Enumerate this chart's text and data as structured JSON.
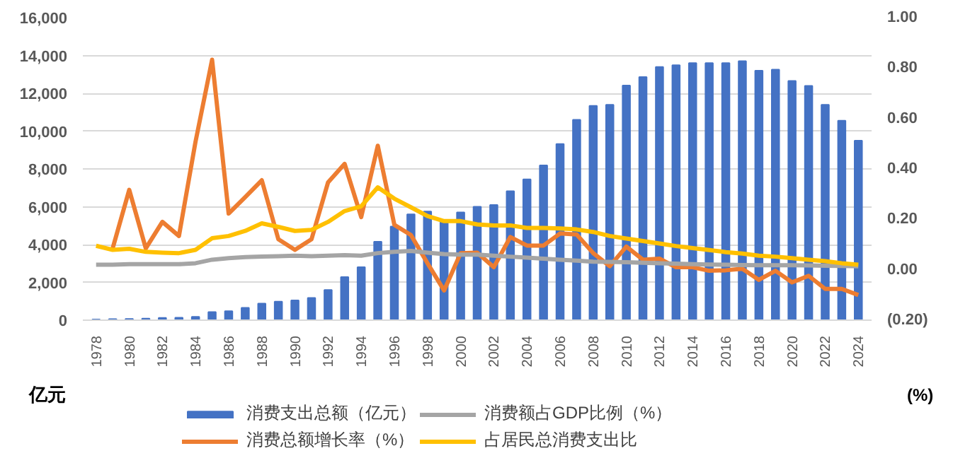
{
  "chart_data": {
    "type": "bar",
    "categories": [
      "1978",
      null,
      "1980",
      null,
      "1982",
      null,
      "1984",
      null,
      "1986",
      null,
      "1988",
      null,
      "1990",
      null,
      "1992",
      null,
      "1994",
      null,
      "1996",
      null,
      "1998",
      null,
      "2000",
      null,
      "2002",
      null,
      "2004",
      null,
      "2006",
      null,
      "2008",
      null,
      "2010",
      null,
      "2012",
      null,
      "2014",
      null,
      "2016",
      null,
      "2018",
      null,
      "2020",
      null,
      "2022",
      null,
      "2024"
    ],
    "series": [
      {
        "name": "消费支出总额（亿元）",
        "color": "#4472c4",
        "values": [
          40,
          60,
          70,
          80,
          120,
          130,
          180,
          430,
          480,
          650,
          880,
          980,
          1050,
          1180,
          1600,
          2280,
          2800,
          4150,
          4950,
          5600,
          5750,
          5200,
          5700,
          6000,
          6090,
          6820,
          7450,
          8190,
          9320,
          10600,
          11340,
          11390,
          12410,
          12860,
          13390,
          13490,
          13600,
          13600,
          13600,
          13700,
          13200,
          13250,
          12650,
          12390,
          11390,
          10550,
          9500
        ]
      },
      {
        "name": "消费总额增长率（%）",
        "color": "#ed7d31",
        "type": "line",
        "axis": "y2",
        "values": [
          null,
          0.085,
          0.317,
          0.085,
          0.19,
          0.134,
          0.508,
          0.833,
          0.223,
          0.288,
          0.355,
          0.121,
          0.079,
          0.121,
          0.347,
          0.42,
          0.209,
          0.492,
          0.178,
          0.138,
          0.026,
          -0.082,
          0.066,
          0.068,
          0.01,
          0.13,
          0.096,
          0.096,
          0.144,
          0.14,
          0.066,
          0.014,
          0.092,
          0.04,
          0.044,
          0.01,
          0.01,
          -0.004,
          -0.002,
          0.004,
          -0.04,
          -0.004,
          -0.05,
          -0.024,
          -0.076,
          -0.076,
          -0.1
        ]
      },
      {
        "name": "消费额占GDP比例（%）",
        "color": "#a5a5a5",
        "type": "line",
        "axis": "y2",
        "values": [
          0.02,
          0.02,
          0.022,
          0.022,
          0.022,
          0.022,
          0.026,
          0.04,
          0.046,
          0.05,
          0.052,
          0.054,
          0.056,
          0.054,
          0.056,
          0.058,
          0.056,
          0.066,
          0.071,
          0.075,
          0.068,
          0.062,
          0.06,
          0.06,
          0.056,
          0.052,
          0.048,
          0.044,
          0.04,
          0.036,
          0.032,
          0.031,
          0.03,
          0.028,
          0.026,
          0.024,
          0.022,
          0.021,
          0.02,
          0.019,
          0.018,
          0.018,
          0.018,
          0.017,
          0.016,
          0.015,
          0.014
        ]
      },
      {
        "name": "占居民总消费支出比",
        "color": "#ffc000",
        "type": "line",
        "axis": "y2",
        "values": [
          0.095,
          0.079,
          0.083,
          0.071,
          0.068,
          0.066,
          0.079,
          0.125,
          0.134,
          0.154,
          0.184,
          0.17,
          0.154,
          0.158,
          0.19,
          0.233,
          0.252,
          0.327,
          0.282,
          0.248,
          0.213,
          0.193,
          0.193,
          0.18,
          0.176,
          0.176,
          0.166,
          0.166,
          0.164,
          0.16,
          0.15,
          0.134,
          0.124,
          0.114,
          0.104,
          0.094,
          0.086,
          0.078,
          0.07,
          0.064,
          0.056,
          0.052,
          0.046,
          0.04,
          0.034,
          0.026,
          0.02
        ]
      }
    ],
    "ylabel": "亿元",
    "y2label": "(%)",
    "ylim": [
      0,
      16000
    ],
    "yticks": [
      {
        "value": 0,
        "label": "0"
      },
      {
        "value": 2000,
        "label": "2,000"
      },
      {
        "value": 4000,
        "label": "4,000"
      },
      {
        "value": 6000,
        "label": "6,000"
      },
      {
        "value": 8000,
        "label": "8,000"
      },
      {
        "value": 10000,
        "label": "10,000"
      },
      {
        "value": 12000,
        "label": "12,000"
      },
      {
        "value": 14000,
        "label": "14,000"
      },
      {
        "value": 16000,
        "label": "16,000"
      }
    ],
    "y2lim": [
      -0.2,
      1.0
    ],
    "y2ticks": [
      {
        "value": -0.2,
        "label": "(0.20)"
      },
      {
        "value": 0,
        "label": "0.00"
      },
      {
        "value": 0.2,
        "label": "0.20"
      },
      {
        "value": 0.4,
        "label": "0.40"
      },
      {
        "value": 0.6,
        "label": "0.60"
      },
      {
        "value": 0.8,
        "label": "0.80"
      },
      {
        "value": 1.0,
        "label": "1.00"
      }
    ],
    "grid": "y",
    "legend": "bottom"
  }
}
